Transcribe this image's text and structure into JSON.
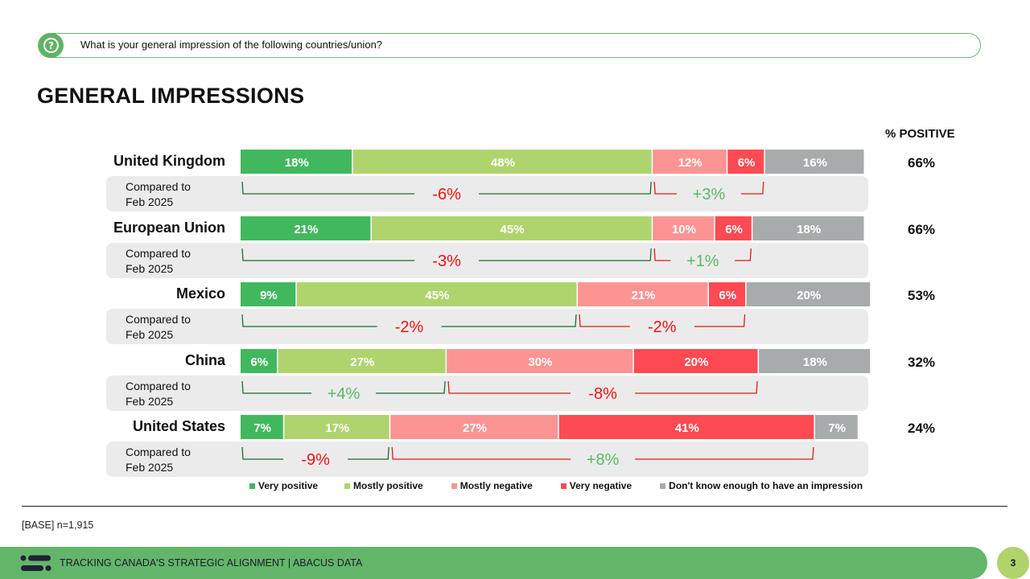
{
  "question": {
    "icon": "question-bubble-icon",
    "text": "What is your general impression of the following countries/union?"
  },
  "title": "GENERAL IMPRESSIONS",
  "positive_header": "% POSITIVE",
  "comparison_label_line1": "Compared to",
  "comparison_label_line2": "Feb 2025",
  "colors": {
    "very_positive": "#42b85e",
    "mostly_positive": "#afd46e",
    "mostly_negative": "#fd9494",
    "very_negative": "#fe4a52",
    "dont_know": "#a8abab",
    "change_up": "#5db865",
    "change_down": "#ef1111",
    "bracket_positive": "#1e6a32",
    "bracket_negative": "#e01818",
    "comparison_bg": "#ebebeb"
  },
  "chart_data": {
    "type": "bar",
    "orientation": "horizontal-stacked-100",
    "title": "GENERAL IMPRESSIONS",
    "categories": [
      "United Kingdom",
      "European Union",
      "Mexico",
      "China",
      "United States"
    ],
    "series": [
      {
        "name": "Very positive",
        "key": "very_positive",
        "values": [
          18,
          21,
          9,
          6,
          7
        ]
      },
      {
        "name": "Mostly positive",
        "key": "mostly_positive",
        "values": [
          48,
          45,
          45,
          27,
          17
        ]
      },
      {
        "name": "Mostly negative",
        "key": "mostly_negative",
        "values": [
          12,
          10,
          21,
          30,
          27
        ]
      },
      {
        "name": "Very negative",
        "key": "very_negative",
        "values": [
          6,
          6,
          6,
          20,
          41
        ]
      },
      {
        "name": "Don't know enough to have an impression",
        "key": "dont_know",
        "values": [
          16,
          18,
          20,
          18,
          7
        ]
      }
    ],
    "percent_positive": [
      "66%",
      "66%",
      "53%",
      "32%",
      "24%"
    ],
    "comparison_feb_2025": {
      "positive_change": [
        "-6%",
        "-3%",
        "-2%",
        "+4%",
        "-9%"
      ],
      "negative_change": [
        "+3%",
        "+1%",
        "-2%",
        "-8%",
        "+8%"
      ]
    },
    "legend": [
      "Very positive",
      "Mostly positive",
      "Mostly negative",
      "Very negative",
      "Don't know enough to have an impression"
    ],
    "legend_position": "bottom",
    "xlim": [
      0,
      100
    ]
  },
  "base_note": "[BASE] n=1,915",
  "footer": {
    "logo": "abacus-logo-icon",
    "text": "TRACKING CANADA'S STRATEGIC ALIGNMENT  |  ABACUS DATA"
  },
  "page_number": "3"
}
